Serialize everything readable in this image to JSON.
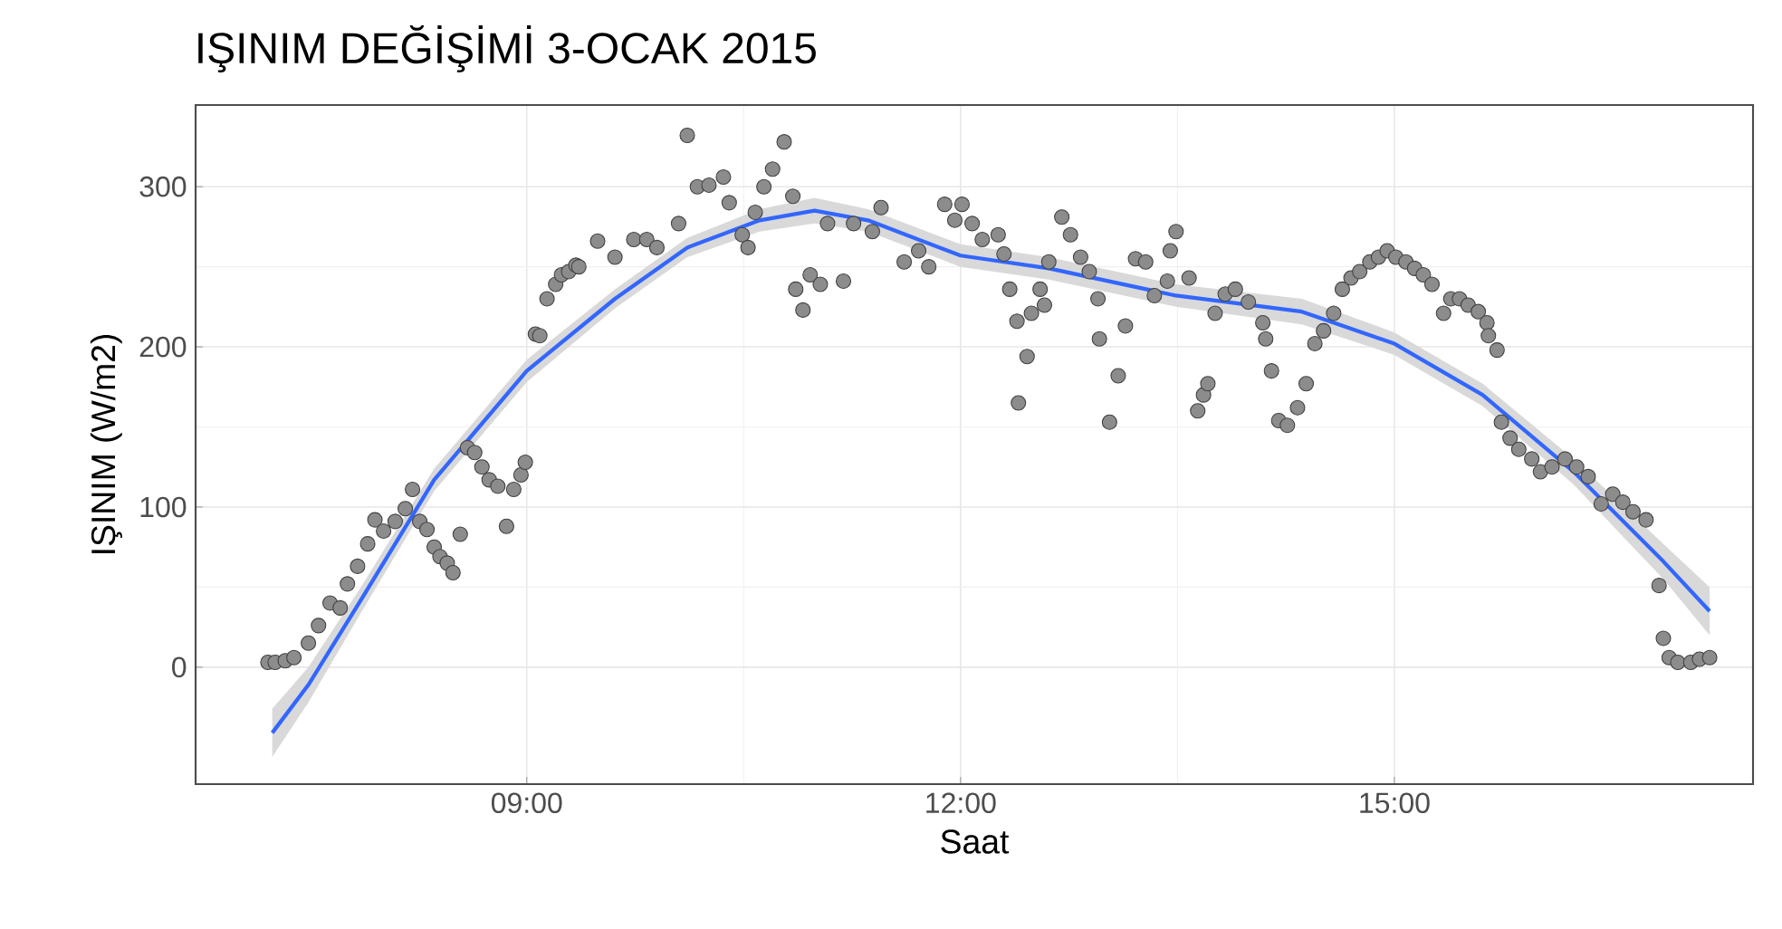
{
  "chart_data": {
    "type": "scatter",
    "title": "IŞINIM DEĞİŞİMİ 3-OCAK 2015",
    "xlabel": "Saat",
    "ylabel": "IŞINIM (W/m2)",
    "xlim": [
      6.71,
      17.48
    ],
    "ylim": [
      -73,
      351
    ],
    "xticks": [
      {
        "value": 9,
        "label": "09:00"
      },
      {
        "value": 12,
        "label": "12:00"
      },
      {
        "value": 15,
        "label": "15:00"
      }
    ],
    "yticks": [
      0,
      100,
      200,
      300
    ],
    "grid": true,
    "series": [
      {
        "color": "#8c8c8c",
        "marker": "circle",
        "x": [
          7.21,
          7.26,
          7.33,
          7.39,
          7.49,
          7.56,
          7.64,
          7.71,
          7.76,
          7.83,
          7.9,
          7.95,
          8.01,
          8.09,
          8.16,
          8.21,
          8.26,
          8.31,
          8.36,
          8.4,
          8.45,
          8.49,
          8.54,
          8.59,
          8.64,
          8.69,
          8.74,
          8.8,
          8.86,
          8.91,
          8.96,
          8.99,
          9.06,
          9.09,
          9.14,
          9.2,
          9.24,
          9.29,
          9.34,
          9.36,
          9.49,
          9.61,
          9.74,
          9.83,
          9.9,
          10.05,
          10.11,
          10.18,
          10.26,
          10.36,
          10.4,
          10.49,
          10.53,
          10.58,
          10.64,
          10.7,
          10.78,
          10.84,
          10.86,
          10.91,
          10.96,
          11.03,
          11.08,
          11.19,
          11.26,
          11.39,
          11.45,
          11.61,
          11.71,
          11.78,
          11.89,
          11.96,
          12.01,
          12.08,
          12.15,
          12.26,
          12.3,
          12.34,
          12.39,
          12.4,
          12.46,
          12.49,
          12.55,
          12.58,
          12.61,
          12.7,
          12.76,
          12.83,
          12.89,
          12.95,
          12.96,
          13.03,
          13.09,
          13.14,
          13.21,
          13.28,
          13.34,
          13.43,
          13.45,
          13.49,
          13.58,
          13.64,
          13.68,
          13.71,
          13.76,
          13.83,
          13.9,
          13.99,
          14.09,
          14.11,
          14.15,
          14.2,
          14.26,
          14.33,
          14.39,
          14.45,
          14.51,
          14.58,
          14.64,
          14.7,
          14.76,
          14.83,
          14.89,
          14.95,
          15.01,
          15.08,
          15.14,
          15.2,
          15.26,
          15.34,
          15.39,
          15.45,
          15.51,
          15.58,
          15.64,
          15.65,
          15.71,
          15.74,
          15.8,
          15.86,
          15.95,
          16.01,
          16.09,
          16.18,
          16.26,
          16.34,
          16.43,
          16.51,
          16.58,
          16.65,
          16.74,
          16.83,
          16.86,
          16.9,
          16.96,
          17.05,
          17.11,
          17.18
        ],
        "values": [
          3,
          3,
          4,
          6,
          15,
          26,
          40,
          37,
          52,
          63,
          77,
          92,
          85,
          91,
          99,
          111,
          91,
          86,
          75,
          69,
          65,
          59,
          83,
          137,
          134,
          125,
          117,
          113,
          88,
          111,
          120,
          128,
          208,
          207,
          230,
          239,
          245,
          247,
          251,
          250,
          266,
          256,
          267,
          267,
          262,
          277,
          332,
          300,
          301,
          306,
          290,
          270,
          262,
          284,
          300,
          311,
          328,
          294,
          236,
          223,
          245,
          239,
          277,
          241,
          277,
          272,
          287,
          253,
          260,
          250,
          289,
          279,
          289,
          277,
          267,
          270,
          258,
          236,
          216,
          165,
          194,
          221,
          236,
          226,
          253,
          281,
          270,
          256,
          247,
          230,
          205,
          153,
          182,
          213,
          255,
          253,
          232,
          241,
          260,
          272,
          243,
          160,
          170,
          177,
          221,
          233,
          236,
          228,
          215,
          205,
          185,
          154,
          151,
          162,
          177,
          202,
          210,
          221,
          236,
          243,
          247,
          253,
          256,
          260,
          256,
          253,
          249,
          245,
          239,
          221,
          230,
          230,
          226,
          222,
          215,
          207,
          198,
          153,
          143,
          136,
          130,
          122,
          125,
          130,
          125,
          119,
          102,
          108,
          103,
          97,
          92,
          51,
          18,
          6,
          3,
          3,
          5,
          6
        ]
      },
      {
        "type": "line",
        "color": "#3366ff",
        "line_style": "solid",
        "marker": "none",
        "x": [
          7.24,
          7.49,
          7.86,
          8.36,
          9.0,
          9.61,
          10.11,
          10.61,
          10.99,
          11.36,
          12.0,
          12.61,
          13.49,
          14.36,
          15.0,
          15.61,
          16.24,
          16.86,
          17.18
        ],
        "values": [
          -41,
          -11,
          43,
          117,
          185,
          230,
          262,
          279,
          285,
          279,
          257,
          249,
          232,
          222,
          202,
          170,
          122,
          66,
          35
        ],
        "lower": [
          -56,
          -22,
          35,
          110,
          178,
          224,
          256,
          272,
          277,
          272,
          250,
          242,
          225,
          214,
          195,
          163,
          114,
          55,
          20
        ],
        "upper": [
          -26,
          0,
          51,
          124,
          192,
          236,
          268,
          286,
          293,
          286,
          264,
          256,
          239,
          230,
          209,
          177,
          130,
          77,
          50
        ]
      }
    ]
  }
}
